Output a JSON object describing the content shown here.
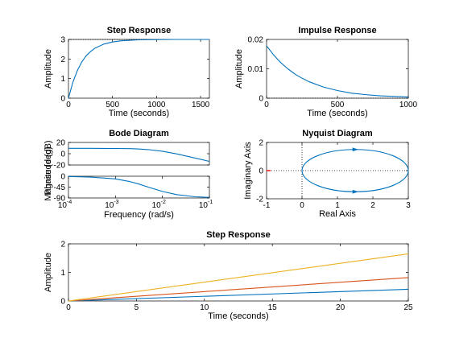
{
  "colors": {
    "series1": "#0072bd",
    "series2": "#d95319",
    "series3": "#edb120",
    "axes": "#000000",
    "background": "#ffffff",
    "marker_red": "#ff0000"
  },
  "chart_data": [
    {
      "id": "step-response-top",
      "type": "line",
      "title": "Step Response",
      "xlabel": "Time (seconds)",
      "ylabel": "Amplitude",
      "xlim": [
        0,
        1600
      ],
      "ylim": [
        0,
        3
      ],
      "xticks": [
        0,
        500,
        1000,
        1500
      ],
      "xtick_labels": [
        "0",
        "500",
        "1000",
        "1500"
      ],
      "yticks": [
        0,
        1,
        2,
        3
      ],
      "ytick_labels": [
        "0",
        "1",
        "2",
        "3"
      ],
      "grid": false,
      "reference_line": {
        "y": 3,
        "style": "dotted"
      },
      "series": [
        {
          "x": [
            0,
            50,
            100,
            150,
            200,
            250,
            300,
            400,
            500,
            600,
            800,
            1000,
            1200,
            1600
          ],
          "y": [
            0,
            0.81,
            1.4,
            1.84,
            2.16,
            2.38,
            2.55,
            2.76,
            2.87,
            2.93,
            2.98,
            2.99,
            3.0,
            3.0
          ]
        }
      ]
    },
    {
      "id": "impulse-response",
      "type": "line",
      "title": "Impulse Response",
      "xlabel": "Time (seconds)",
      "ylabel": "Amplitude",
      "xlim": [
        0,
        1000
      ],
      "ylim": [
        0,
        0.02
      ],
      "xticks": [
        0,
        500,
        1000
      ],
      "xtick_labels": [
        "0",
        "500",
        "1000"
      ],
      "yticks": [
        0,
        0.01,
        0.02
      ],
      "ytick_labels": [
        "0",
        "0.01",
        "0.02"
      ],
      "grid": false,
      "reference_line": {
        "y": 0,
        "style": "dotted"
      },
      "series": [
        {
          "x": [
            0,
            50,
            100,
            150,
            200,
            250,
            300,
            400,
            500,
            600,
            700,
            800,
            1000
          ],
          "y": [
            0.0178,
            0.0147,
            0.0121,
            0.01,
            0.0082,
            0.0068,
            0.0056,
            0.0038,
            0.0026,
            0.0017,
            0.0012,
            0.0008,
            0.0004
          ]
        }
      ]
    },
    {
      "id": "bode-magnitude",
      "type": "line",
      "title": "Bode Diagram",
      "ylabel": "Magnitude (dB)",
      "xscale": "log",
      "xlim": [
        0.0001,
        0.1
      ],
      "ylim": [
        -20,
        20
      ],
      "yticks": [
        -20,
        0,
        20
      ],
      "ytick_labels": [
        "-20",
        "0",
        "20"
      ],
      "grid": false,
      "series": [
        {
          "x": [
            0.0001,
            0.0003,
            0.001,
            0.002,
            0.003,
            0.005,
            0.01,
            0.02,
            0.05,
            0.1
          ],
          "y": [
            9.5,
            9.5,
            9.3,
            9.0,
            8.5,
            7.3,
            4.4,
            -0.3,
            -7.8,
            -13.6
          ]
        }
      ]
    },
    {
      "id": "bode-phase",
      "type": "line",
      "xlabel": "Frequency  (rad/s)",
      "ylabel": "Phase (deg)",
      "xscale": "log",
      "xlim": [
        0.0001,
        0.1
      ],
      "ylim": [
        -90,
        0
      ],
      "xticks": [
        0.0001,
        0.001,
        0.01,
        0.1
      ],
      "xtick_base": "10",
      "xtick_exponents": [
        "-4",
        "-3",
        "-2",
        "-1"
      ],
      "yticks": [
        -90,
        -45,
        0
      ],
      "ytick_labels": [
        "-90",
        "-45",
        "0"
      ],
      "grid": false,
      "series": [
        {
          "x": [
            0.0001,
            0.0003,
            0.001,
            0.002,
            0.003,
            0.005,
            0.01,
            0.02,
            0.05,
            0.1
          ],
          "y": [
            -1.2,
            -3.4,
            -11,
            -22,
            -31,
            -45,
            -63,
            -76,
            -85,
            -87.5
          ]
        }
      ]
    },
    {
      "id": "nyquist",
      "type": "line",
      "title": "Nyquist Diagram",
      "xlabel": "Real Axis",
      "ylabel": "Imaginary Axis",
      "xlim": [
        -1,
        3
      ],
      "ylim": [
        -2,
        2
      ],
      "xticks": [
        -1,
        0,
        1,
        2,
        3
      ],
      "xtick_labels": [
        "-1",
        "0",
        "1",
        "2",
        "3"
      ],
      "yticks": [
        -2,
        0,
        2
      ],
      "ytick_labels": [
        "-2",
        "0",
        "2"
      ],
      "grid": false,
      "reference_lines": [
        {
          "x": 0,
          "style": "dotted"
        },
        {
          "y": 0,
          "style": "dotted"
        }
      ],
      "critical_point": {
        "x": -1,
        "y": 0
      },
      "series": [
        {
          "shape": "circle",
          "center": [
            1.5,
            0
          ],
          "radius": 1.5
        },
        {
          "arrows": [
            {
              "x": 1.5,
              "y": 1.5
            },
            {
              "x": 1.5,
              "y": -1.5
            }
          ]
        }
      ]
    },
    {
      "id": "step-response-bottom",
      "type": "line",
      "title": "Step Response",
      "xlabel": "Time (seconds)",
      "ylabel": "Amplitude",
      "xlim": [
        0,
        25
      ],
      "ylim": [
        0,
        2
      ],
      "xticks": [
        0,
        5,
        10,
        15,
        20,
        25
      ],
      "xtick_labels": [
        "0",
        "5",
        "10",
        "15",
        "20",
        "25"
      ],
      "yticks": [
        0,
        1,
        2
      ],
      "ytick_labels": [
        "0",
        "1",
        "2"
      ],
      "grid": false,
      "series": [
        {
          "x": [
            0,
            25
          ],
          "y": [
            0,
            0.41
          ]
        },
        {
          "x": [
            0,
            25
          ],
          "y": [
            0,
            0.82
          ]
        },
        {
          "x": [
            0,
            25
          ],
          "y": [
            0,
            1.65
          ]
        }
      ]
    }
  ]
}
